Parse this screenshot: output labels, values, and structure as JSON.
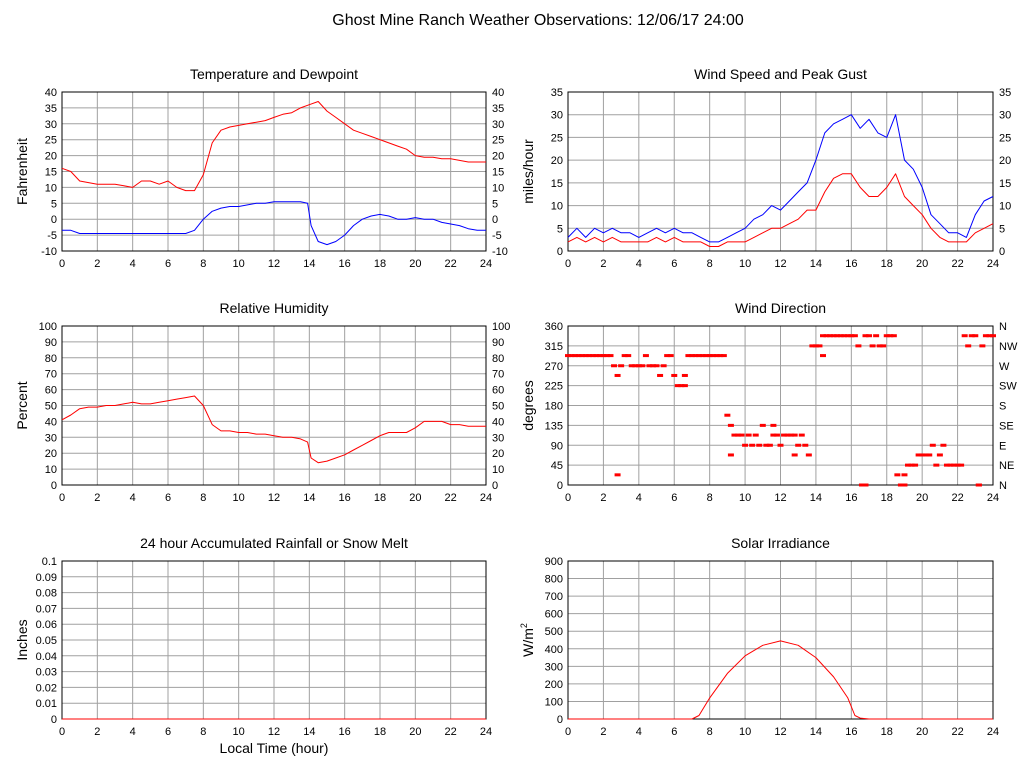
{
  "page": {
    "title": "Ghost Mine Ranch Weather Observations: 12/06/17 24:00"
  },
  "colors": {
    "series_red": "#ff0000",
    "series_blue": "#0000ff",
    "grid": "#a0a0a0",
    "axis": "#000000"
  },
  "chart_data": [
    {
      "id": "temp",
      "type": "line",
      "title": "Temperature and Dewpoint",
      "xlabel": "",
      "ylabel": "Fahrenheit",
      "xlim": [
        0,
        24
      ],
      "ylim": [
        -10,
        40
      ],
      "xticks": [
        0,
        2,
        4,
        6,
        8,
        10,
        12,
        14,
        16,
        18,
        20,
        22,
        24
      ],
      "yticks": [
        -10,
        -5,
        0,
        5,
        10,
        15,
        20,
        25,
        30,
        35,
        40
      ],
      "right_labels": [
        "-10",
        "-5",
        "0",
        "5",
        "10",
        "15",
        "20",
        "25",
        "30",
        "35",
        "40"
      ],
      "grid": true,
      "series": [
        {
          "color": "#ff0000",
          "x": [
            0,
            0.5,
            1,
            1.5,
            2,
            2.5,
            3,
            3.5,
            4,
            4.5,
            5,
            5.5,
            6,
            6.5,
            7,
            7.5,
            8,
            8.5,
            9,
            9.5,
            10,
            10.5,
            11,
            11.5,
            12,
            12.5,
            13,
            13.5,
            14,
            14.5,
            15,
            15.5,
            16,
            16.5,
            17,
            17.5,
            18,
            18.5,
            19,
            19.5,
            20,
            20.5,
            21,
            21.5,
            22,
            22.5,
            23,
            23.5,
            24
          ],
          "y": [
            16,
            15,
            12,
            11.5,
            11,
            11,
            11,
            10.5,
            10,
            12,
            12,
            11,
            12,
            10,
            9,
            9,
            14,
            24,
            28,
            29,
            29.5,
            30,
            30.5,
            31,
            32,
            33,
            33.5,
            35,
            36,
            37,
            34,
            32,
            30,
            28,
            27,
            26,
            25,
            24,
            23,
            22,
            20,
            19.5,
            19.5,
            19,
            19,
            18.5,
            18,
            18,
            18
          ]
        },
        {
          "color": "#0000ff",
          "x": [
            0,
            0.5,
            1,
            1.5,
            2,
            2.5,
            3,
            3.5,
            4,
            4.5,
            5,
            5.5,
            6,
            6.5,
            7,
            7.5,
            8,
            8.5,
            9,
            9.5,
            10,
            10.5,
            11,
            11.5,
            12,
            12.5,
            13,
            13.5,
            13.9,
            14.1,
            14.5,
            15,
            15.5,
            16,
            16.5,
            17,
            17.5,
            18,
            18.5,
            19,
            19.5,
            20,
            20.5,
            21,
            21.5,
            22,
            22.5,
            23,
            23.5,
            24
          ],
          "y": [
            -3.5,
            -3.5,
            -4.5,
            -4.5,
            -4.5,
            -4.5,
            -4.5,
            -4.5,
            -4.5,
            -4.5,
            -4.5,
            -4.5,
            -4.5,
            -4.5,
            -4.5,
            -3.5,
            0,
            2.5,
            3.5,
            4,
            4,
            4.5,
            5,
            5,
            5.5,
            5.5,
            5.5,
            5.5,
            5,
            -2,
            -7,
            -8,
            -7,
            -5,
            -2,
            0,
            1,
            1.5,
            1,
            0,
            0,
            0.5,
            0,
            0,
            -1,
            -1.5,
            -2,
            -3,
            -3.5,
            -3.5
          ]
        }
      ]
    },
    {
      "id": "wind",
      "type": "line",
      "title": "Wind Speed and Peak Gust",
      "xlabel": "",
      "ylabel": "miles/hour",
      "xlim": [
        0,
        24
      ],
      "ylim": [
        0,
        35
      ],
      "xticks": [
        0,
        2,
        4,
        6,
        8,
        10,
        12,
        14,
        16,
        18,
        20,
        22,
        24
      ],
      "yticks": [
        0,
        5,
        10,
        15,
        20,
        25,
        30,
        35
      ],
      "right_labels": [
        "0",
        "5",
        "10",
        "15",
        "20",
        "25",
        "30",
        "35"
      ],
      "grid": true,
      "series": [
        {
          "color": "#0000ff",
          "x": [
            0,
            0.5,
            1,
            1.5,
            2,
            2.5,
            3,
            3.5,
            4,
            4.5,
            5,
            5.5,
            6,
            6.5,
            7,
            7.5,
            8,
            8.5,
            9,
            9.5,
            10,
            10.5,
            11,
            11.5,
            12,
            12.5,
            13,
            13.5,
            14,
            14.5,
            15,
            15.5,
            16,
            16.5,
            17,
            17.5,
            18,
            18.5,
            19,
            19.5,
            20,
            20.5,
            21,
            21.5,
            22,
            22.5,
            23,
            23.5,
            24
          ],
          "y": [
            3,
            5,
            3,
            5,
            4,
            5,
            4,
            4,
            3,
            4,
            5,
            4,
            5,
            4,
            4,
            3,
            2,
            2,
            3,
            4,
            5,
            7,
            8,
            10,
            9,
            11,
            13,
            15,
            20,
            26,
            28,
            29,
            30,
            27,
            29,
            26,
            25,
            30,
            20,
            18,
            14,
            8,
            6,
            4,
            4,
            3,
            8,
            11,
            12
          ]
        },
        {
          "color": "#ff0000",
          "x": [
            0,
            0.5,
            1,
            1.5,
            2,
            2.5,
            3,
            3.5,
            4,
            4.5,
            5,
            5.5,
            6,
            6.5,
            7,
            7.5,
            8,
            8.5,
            9,
            9.5,
            10,
            10.5,
            11,
            11.5,
            12,
            12.5,
            13,
            13.5,
            14,
            14.5,
            15,
            15.5,
            16,
            16.5,
            17,
            17.5,
            18,
            18.5,
            19,
            19.5,
            20,
            20.5,
            21,
            21.5,
            22,
            22.5,
            23,
            23.5,
            24
          ],
          "y": [
            2,
            3,
            2,
            3,
            2,
            3,
            2,
            2,
            2,
            2,
            3,
            2,
            3,
            2,
            2,
            2,
            1,
            1,
            2,
            2,
            2,
            3,
            4,
            5,
            5,
            6,
            7,
            9,
            9,
            13,
            16,
            17,
            17,
            14,
            12,
            12,
            14,
            17,
            12,
            10,
            8,
            5,
            3,
            2,
            2,
            2,
            4,
            5,
            6
          ]
        }
      ]
    },
    {
      "id": "rh",
      "type": "line",
      "title": "Relative Humidity",
      "xlabel": "",
      "ylabel": "Percent",
      "xlim": [
        0,
        24
      ],
      "ylim": [
        0,
        100
      ],
      "xticks": [
        0,
        2,
        4,
        6,
        8,
        10,
        12,
        14,
        16,
        18,
        20,
        22,
        24
      ],
      "yticks": [
        0,
        10,
        20,
        30,
        40,
        50,
        60,
        70,
        80,
        90,
        100
      ],
      "right_labels": [
        "0",
        "10",
        "20",
        "30",
        "40",
        "50",
        "60",
        "70",
        "80",
        "90",
        "100"
      ],
      "grid": true,
      "series": [
        {
          "color": "#ff0000",
          "x": [
            0,
            0.5,
            1,
            1.5,
            2,
            2.5,
            3,
            3.5,
            4,
            4.5,
            5,
            5.5,
            6,
            6.5,
            7,
            7.5,
            8,
            8.5,
            9,
            9.5,
            10,
            10.5,
            11,
            11.5,
            12,
            12.5,
            13,
            13.5,
            13.9,
            14.1,
            14.5,
            15,
            15.5,
            16,
            16.5,
            17,
            17.5,
            18,
            18.5,
            19,
            19.5,
            20,
            20.5,
            21,
            21.5,
            22,
            22.5,
            23,
            23.5,
            24
          ],
          "y": [
            41,
            44,
            48,
            49,
            49,
            50,
            50,
            51,
            52,
            51,
            51,
            52,
            53,
            54,
            55,
            56,
            50,
            38,
            34,
            34,
            33,
            33,
            32,
            32,
            31,
            30,
            30,
            29,
            27,
            17,
            14,
            15,
            17,
            19,
            22,
            25,
            28,
            31,
            33,
            33,
            33,
            36,
            40,
            40,
            40,
            38,
            38,
            37,
            37,
            37
          ]
        }
      ]
    },
    {
      "id": "wdir",
      "type": "scatter",
      "title": "Wind Direction",
      "xlabel": "",
      "ylabel": "degrees",
      "xlim": [
        0,
        24
      ],
      "ylim": [
        0,
        360
      ],
      "xticks": [
        0,
        2,
        4,
        6,
        8,
        10,
        12,
        14,
        16,
        18,
        20,
        22,
        24
      ],
      "yticks": [
        0,
        45,
        90,
        135,
        180,
        225,
        270,
        315,
        360
      ],
      "right_labels": [
        "N",
        "NE",
        "E",
        "SE",
        "S",
        "SW",
        "W",
        "NW",
        "N"
      ],
      "grid": true,
      "series": [
        {
          "color": "#ff0000",
          "x": [
            0,
            0.2,
            0.4,
            0.6,
            0.8,
            1,
            1.2,
            1.4,
            1.6,
            1.8,
            2,
            2.2,
            2.4,
            2.6,
            2.8,
            3,
            3.2,
            3.4,
            3.6,
            3.8,
            4,
            4.2,
            4.4,
            4.6,
            4.8,
            5,
            5.2,
            5.4,
            5.6,
            5.8,
            6,
            6.2,
            6.4,
            6.6,
            6.8,
            7,
            7.2,
            7.4,
            7.6,
            7.8,
            8,
            8.2,
            8.4,
            8.6,
            8.8,
            9,
            9.2,
            9.4,
            9.6,
            9.8,
            10,
            10.2,
            10.4,
            10.6,
            10.8,
            11,
            11.2,
            11.4,
            11.6,
            11.8,
            12,
            12.2,
            12.4,
            12.6,
            12.8,
            13,
            13.2,
            13.4,
            13.6,
            13.8,
            14,
            14.2,
            14.4,
            14.6,
            14.8,
            15,
            15.2,
            15.4,
            15.6,
            15.8,
            16,
            16.2,
            16.4,
            16.6,
            16.8,
            17,
            17.2,
            17.4,
            17.6,
            17.8,
            18,
            18.2,
            18.4,
            18.6,
            18.8,
            19,
            19.2,
            19.4,
            19.6,
            19.8,
            20,
            20.2,
            20.4,
            20.6,
            20.8,
            21,
            21.2,
            21.4,
            21.6,
            21.8,
            22,
            22.2,
            22.4,
            22.6,
            22.8,
            23,
            23.2,
            23.4,
            23.6,
            23.8,
            24
          ],
          "y": [
            293,
            293,
            293,
            293,
            293,
            293,
            293,
            293,
            293,
            293,
            293,
            293,
            293,
            270,
            248,
            270,
            293,
            293,
            270,
            270,
            270,
            270,
            293,
            270,
            270,
            270,
            248,
            270,
            293,
            293,
            248,
            225,
            225,
            225,
            293,
            293,
            293,
            293,
            293,
            293,
            293,
            293,
            293,
            293,
            293,
            158,
            135,
            113,
            113,
            113,
            90,
            113,
            90,
            113,
            90,
            135,
            90,
            90,
            113,
            113,
            90,
            113,
            113,
            113,
            113,
            90,
            113,
            90,
            68,
            315,
            315,
            315,
            338,
            338,
            338,
            338,
            338,
            338,
            338,
            338,
            338,
            338,
            315,
            0,
            338,
            338,
            315,
            338,
            315,
            315,
            338,
            338,
            338,
            23,
            0,
            23,
            45,
            45,
            45,
            68,
            68,
            68,
            68,
            90,
            45,
            68,
            90,
            45,
            45,
            45,
            45,
            45,
            338,
            315,
            338,
            338,
            0,
            315,
            338,
            338,
            338
          ]
        },
        {
          "color": "#ff0000",
          "x": [
            2.8,
            6.6,
            9.2,
            11.6,
            12.8,
            14.4,
            16.8,
            19.0,
            23.2
          ],
          "y": [
            23,
            248,
            68,
            135,
            68,
            293,
            0,
            0,
            0
          ]
        }
      ]
    },
    {
      "id": "rain",
      "type": "line",
      "title": "24 hour Accumulated Rainfall or Snow Melt",
      "xlabel": "Local Time (hour)",
      "ylabel": "Inches",
      "xlim": [
        0,
        24
      ],
      "ylim": [
        0,
        0.1
      ],
      "xticks": [
        0,
        2,
        4,
        6,
        8,
        10,
        12,
        14,
        16,
        18,
        20,
        22,
        24
      ],
      "yticks": [
        0,
        0.01,
        0.02,
        0.03,
        0.04,
        0.05,
        0.06,
        0.07,
        0.08,
        0.09,
        0.1
      ],
      "right_labels": [],
      "grid": true,
      "series": [
        {
          "color": "#ff0000",
          "x": [
            0,
            24
          ],
          "y": [
            0,
            0
          ]
        }
      ]
    },
    {
      "id": "solar",
      "type": "line",
      "title": "Solar Irradiance",
      "xlabel": "",
      "ylabel": "W/m",
      "ylabel_sup": "2",
      "xlim": [
        0,
        24
      ],
      "ylim": [
        0,
        900
      ],
      "xticks": [
        0,
        2,
        4,
        6,
        8,
        10,
        12,
        14,
        16,
        18,
        20,
        22,
        24
      ],
      "yticks": [
        0,
        100,
        200,
        300,
        400,
        500,
        600,
        700,
        800,
        900
      ],
      "right_labels": [],
      "grid": true,
      "series": [
        {
          "color": "#ff0000",
          "x": [
            0,
            7,
            7.4,
            8,
            9,
            10,
            11,
            12,
            13,
            14,
            15,
            15.8,
            16.2,
            16.5,
            17,
            24
          ],
          "y": [
            0,
            0,
            20,
            120,
            260,
            360,
            420,
            445,
            420,
            350,
            240,
            120,
            20,
            5,
            0,
            0
          ]
        }
      ]
    }
  ]
}
